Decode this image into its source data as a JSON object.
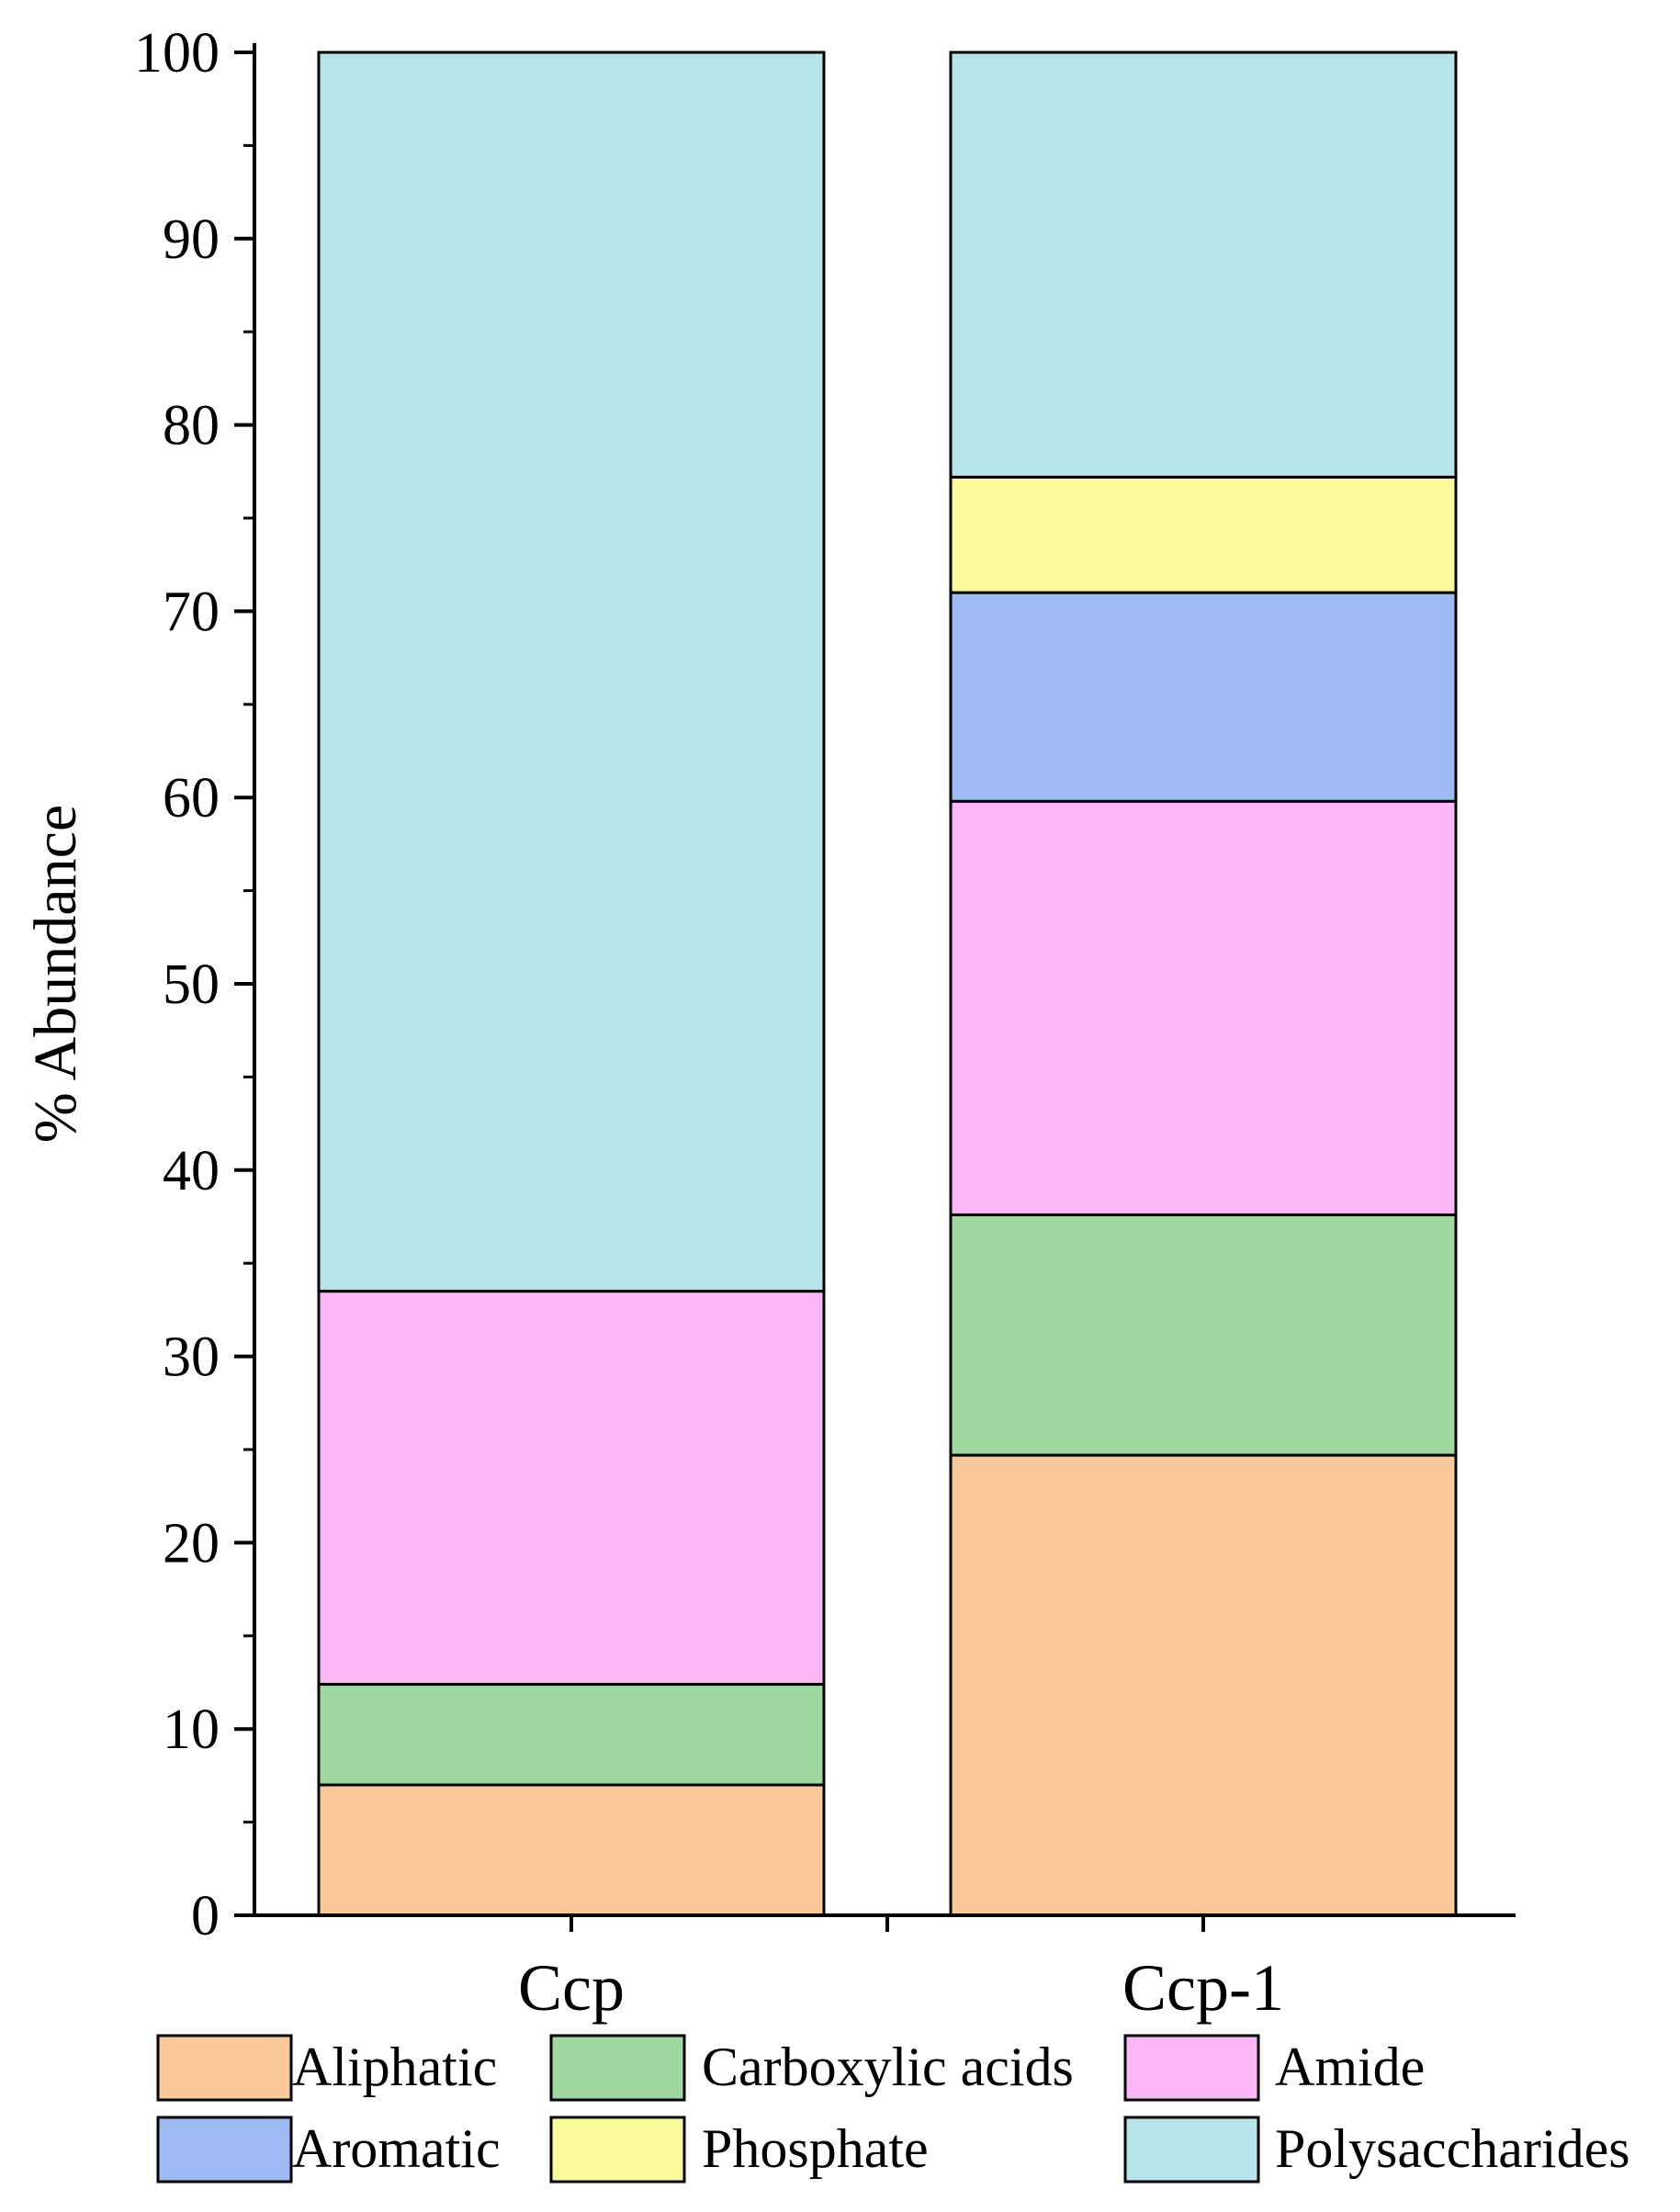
{
  "chart_data": {
    "type": "bar",
    "stacked": true,
    "title": "",
    "xlabel": "",
    "ylabel": "% Abundance",
    "ylim": [
      0,
      100
    ],
    "yticks": [
      0,
      10,
      20,
      30,
      40,
      50,
      60,
      70,
      80,
      90,
      100
    ],
    "categories": [
      "Ccp",
      "Ccp-1"
    ],
    "series": [
      {
        "name": "Aliphatic",
        "color": "#F9C898",
        "values": [
          7.0,
          24.7
        ]
      },
      {
        "name": "Carboxylic acids",
        "color": "#9ED89E",
        "values": [
          5.4,
          12.9
        ]
      },
      {
        "name": "Amide",
        "color": "#FBB6F5",
        "values": [
          21.1,
          22.2
        ]
      },
      {
        "name": "Aromatic",
        "color": "#9DBBF2",
        "values": [
          0,
          11.2
        ]
      },
      {
        "name": "Phosphate",
        "color": "#FCFB9C",
        "values": [
          0,
          6.2
        ]
      },
      {
        "name": "Polysaccharides",
        "color": "#B5E4EA",
        "values": [
          66.5,
          22.8
        ]
      }
    ],
    "legend_position": "bottom",
    "grid": false
  }
}
